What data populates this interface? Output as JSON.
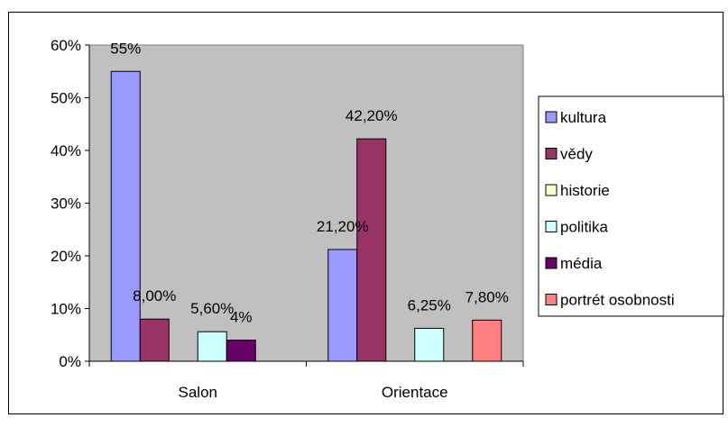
{
  "chart_data": {
    "type": "bar",
    "categories": [
      "Salon",
      "Orientace"
    ],
    "series": [
      {
        "name": "kultura",
        "color": "#9999FF",
        "values": [
          55,
          21.2
        ],
        "labels": [
          "55%",
          "21,20%"
        ]
      },
      {
        "name": "vědy",
        "color": "#993366",
        "values": [
          8,
          42.2
        ],
        "labels": [
          "8,00%",
          "42,20%"
        ]
      },
      {
        "name": "historie",
        "color": "#FFFFCC",
        "values": [
          null,
          null
        ],
        "labels": [
          null,
          null
        ]
      },
      {
        "name": "politika",
        "color": "#CCFFFF",
        "values": [
          5.6,
          6.25
        ],
        "labels": [
          "5,60%",
          "6,25%"
        ]
      },
      {
        "name": "média",
        "color": "#660066",
        "values": [
          4,
          null
        ],
        "labels": [
          "4%",
          null
        ]
      },
      {
        "name": "portrét osobnosti",
        "color": "#FF8080",
        "values": [
          null,
          7.8
        ],
        "labels": [
          null,
          "7,80%"
        ]
      }
    ],
    "ylim": [
      0,
      60
    ],
    "yticks": [
      0,
      10,
      20,
      30,
      40,
      50,
      60
    ],
    "ytick_labels": [
      "0%",
      "10%",
      "20%",
      "30%",
      "40%",
      "50%",
      "60%"
    ],
    "legend_position": "right",
    "plot_background": "#C0C0C0",
    "grid": false
  }
}
